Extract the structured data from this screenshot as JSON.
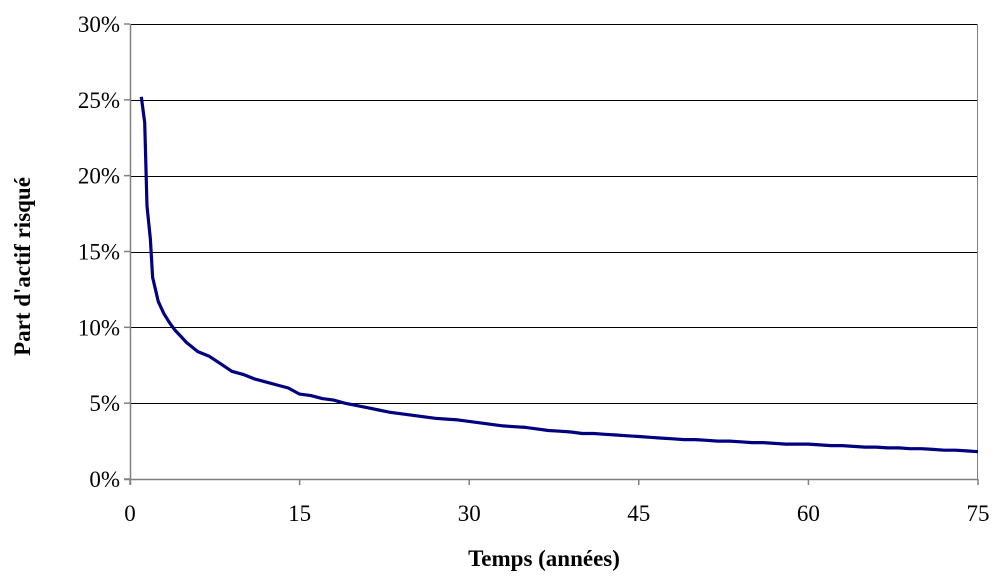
{
  "chart_data": {
    "type": "line",
    "title": "",
    "xlabel": "Temps (années)",
    "ylabel": "Part d'actif risqué",
    "xlim": [
      0,
      75
    ],
    "ylim": [
      0,
      30
    ],
    "x_ticks": [
      0,
      15,
      30,
      45,
      60,
      75
    ],
    "y_ticks": [
      0,
      5,
      10,
      15,
      20,
      25,
      30
    ],
    "x_tick_labels": [
      "0",
      "15",
      "30",
      "45",
      "60",
      "75"
    ],
    "y_tick_labels": [
      "0%",
      "5%",
      "10%",
      "15%",
      "20%",
      "25%",
      "30%"
    ],
    "grid": "horizontal",
    "legend": "none",
    "colors": {
      "line": "#000080",
      "grid": "#000000",
      "axis": "#808080"
    },
    "series": [
      {
        "x": [
          1,
          1.3,
          1.5,
          1.8,
          2,
          2.5,
          3,
          3.5,
          4,
          4.5,
          5,
          6,
          7,
          8,
          9,
          10,
          11,
          12,
          13,
          14,
          15,
          16,
          17,
          18,
          19,
          20,
          21,
          22,
          23,
          24,
          25,
          26,
          27,
          28,
          29,
          30,
          31,
          32,
          33,
          34,
          35,
          36,
          37,
          38,
          39,
          40,
          41,
          42,
          43,
          44,
          45,
          46,
          47,
          48,
          49,
          50,
          51,
          52,
          53,
          54,
          55,
          56,
          57,
          58,
          59,
          60,
          61,
          62,
          63,
          64,
          65,
          66,
          67,
          68,
          69,
          70,
          71,
          72,
          73,
          74,
          75
        ],
        "values": [
          25.2,
          23.5,
          18.0,
          15.8,
          13.3,
          11.7,
          10.9,
          10.3,
          9.8,
          9.4,
          9.0,
          8.4,
          8.1,
          7.6,
          7.1,
          6.9,
          6.6,
          6.4,
          6.2,
          6.0,
          5.6,
          5.5,
          5.3,
          5.2,
          5.0,
          4.85,
          4.7,
          4.55,
          4.4,
          4.3,
          4.2,
          4.1,
          4.0,
          3.95,
          3.9,
          3.8,
          3.7,
          3.6,
          3.5,
          3.45,
          3.4,
          3.3,
          3.2,
          3.15,
          3.1,
          3.0,
          3.0,
          2.95,
          2.9,
          2.85,
          2.8,
          2.75,
          2.7,
          2.65,
          2.6,
          2.6,
          2.55,
          2.5,
          2.5,
          2.45,
          2.4,
          2.4,
          2.35,
          2.3,
          2.3,
          2.3,
          2.25,
          2.2,
          2.2,
          2.15,
          2.1,
          2.1,
          2.05,
          2.05,
          2.0,
          2.0,
          1.95,
          1.9,
          1.9,
          1.85,
          1.8
        ]
      }
    ]
  }
}
